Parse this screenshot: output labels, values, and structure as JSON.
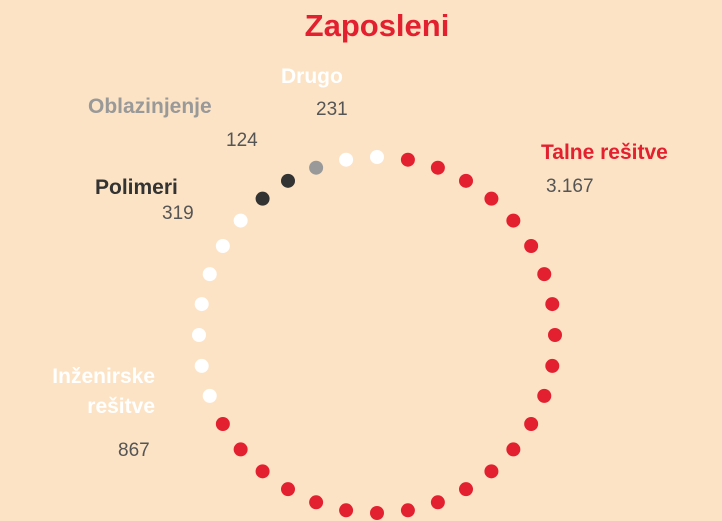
{
  "chart_data": {
    "type": "dot-ring",
    "title": "Zaposleni",
    "series": [
      {
        "name": "Talne rešitve",
        "color": "#e3202f",
        "values": [
          3167
        ],
        "value_labels": [
          "3.167"
        ]
      },
      {
        "name": "Inženirske rešitve",
        "color": "#ffffff",
        "values": [
          867
        ]
      },
      {
        "name": "Polimeri",
        "color": "#333333",
        "values": [
          319
        ]
      },
      {
        "name": "Oblazinjenje",
        "color": "#999999",
        "values": [
          124
        ]
      },
      {
        "name": "Drugo",
        "color": "#ffffff",
        "values": [
          231
        ]
      }
    ]
  }
}
